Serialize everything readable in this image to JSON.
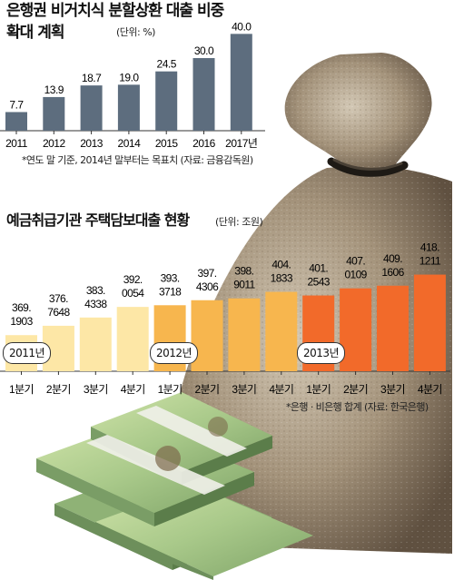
{
  "chart_data": [
    {
      "type": "bar",
      "title": "은행권 비거치식 분할상환 대출 비중확대 계획",
      "unit_label": "(단위: %)",
      "categories": [
        "2011",
        "2012",
        "2013",
        "2014",
        "2015",
        "2016",
        "2017년"
      ],
      "values": [
        7.7,
        13.9,
        18.7,
        19.0,
        24.5,
        30.0,
        40.0
      ],
      "value_labels": [
        "7.7",
        "13.9",
        "18.7",
        "19.0",
        "24.5",
        "30.0",
        "40.0"
      ],
      "note": "*연도 말 기준, 2014년 말부터는 목표치 (자료: 금융감독원)",
      "colors": [
        "#5d6d7e"
      ],
      "ylim": [
        0,
        42
      ]
    },
    {
      "type": "bar",
      "title": "예금취급기관 주택담보대출 현황",
      "unit_label": "(단위: 조원)",
      "categories": [
        "1분기",
        "2분기",
        "3분기",
        "4분기",
        "1분기",
        "2분기",
        "3분기",
        "4분기",
        "1분기",
        "2분기",
        "3분기",
        "4분기"
      ],
      "values": [
        369.1903,
        376.7648,
        383.4338,
        392.0054,
        393.3718,
        397.4306,
        398.9011,
        404.1833,
        401.2543,
        407.0109,
        409.1606,
        418.1211
      ],
      "value_labels": [
        [
          "369.",
          "1903"
        ],
        [
          "376.",
          "7648"
        ],
        [
          "383.",
          "4338"
        ],
        [
          "392.",
          "0054"
        ],
        [
          "393.",
          "3718"
        ],
        [
          "397.",
          "4306"
        ],
        [
          "398.",
          "9011"
        ],
        [
          "404.",
          "1833"
        ],
        [
          "401.",
          "2543"
        ],
        [
          "407.",
          "0109"
        ],
        [
          "409.",
          "1606"
        ],
        [
          "418.",
          "1211"
        ]
      ],
      "year_labels": [
        "2011년",
        "2012년",
        "2013년"
      ],
      "note": "*은행 · 비은행 합계 (자료: 한국은행)",
      "colors": [
        "#fde7a6",
        "#f7b64e",
        "#f26a2a"
      ]
    }
  ]
}
